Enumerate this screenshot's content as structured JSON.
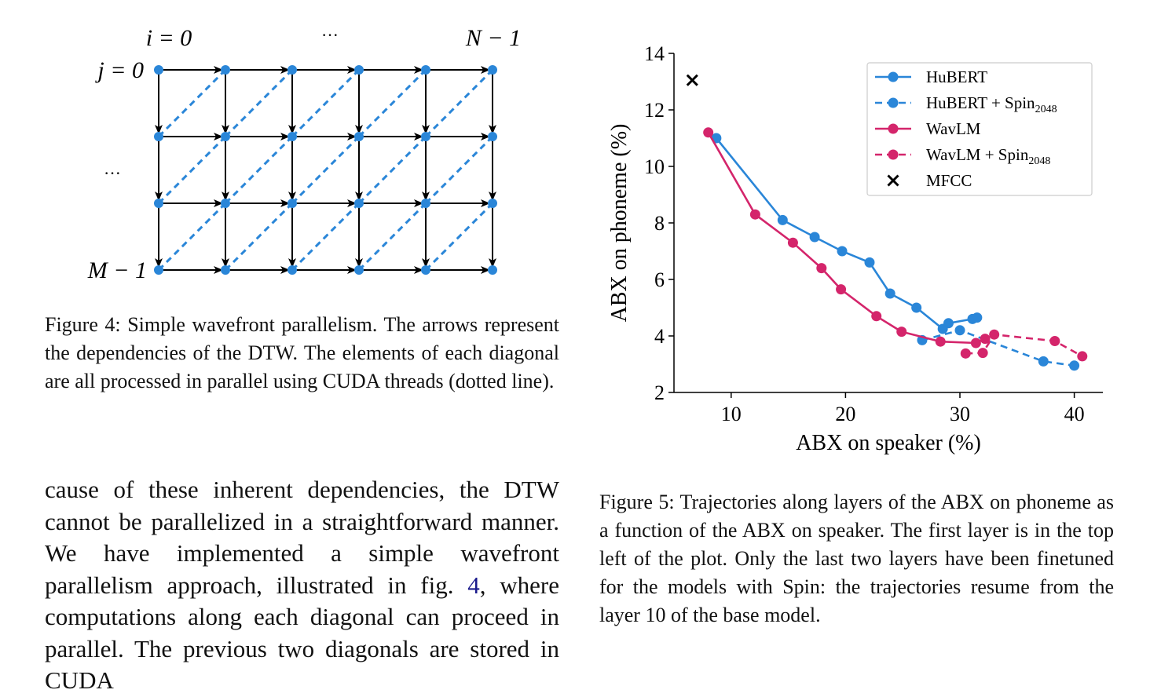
{
  "figure4": {
    "labels": {
      "i_start": "i = 0",
      "i_dots": "···",
      "i_end": "N − 1",
      "j_start": "j = 0",
      "j_dots": "···",
      "j_end": "M − 1"
    },
    "grid": {
      "columns": 6,
      "rows": 4
    },
    "colors": {
      "node": "#2a86d8",
      "arrow": "#000000",
      "diagonal": "#2a86d8"
    },
    "caption": "Figure 4: Simple wavefront parallelism. The arrows represent the dependencies of the DTW. The elements of each diagonal are all processed in parallel using CUDA threads (dotted line)."
  },
  "body_text": {
    "before_ref": "cause of these inherent dependencies, the DTW cannot be parallelized in a straightforward manner. We have implemented a simple wavefront parallelism approach, illustrated in fig. ",
    "ref": "4",
    "after_ref": ", where computations along each diagonal can proceed in parallel. The previous two diagonals are stored in CUDA"
  },
  "chart_data": {
    "type": "line",
    "xlabel": "ABX on speaker (%)",
    "ylabel": "ABX on phoneme (%)",
    "xlim": [
      5,
      42.5
    ],
    "ylim": [
      2,
      14
    ],
    "xticks": [
      10,
      20,
      30,
      40
    ],
    "yticks": [
      2,
      4,
      6,
      8,
      10,
      12,
      14
    ],
    "legend_position": "top-right",
    "series": [
      {
        "name": "HuBERT",
        "color": "#2a86d8",
        "style": "solid",
        "marker": "circle",
        "x": [
          8.7,
          14.5,
          17.3,
          19.7,
          22.1,
          23.9,
          26.2,
          28.5,
          29.0,
          31.1,
          31.5
        ],
        "y": [
          11.0,
          8.1,
          7.5,
          7.0,
          6.6,
          5.5,
          5.0,
          4.25,
          4.45,
          4.6,
          4.65
        ]
      },
      {
        "name": "HuBERT + Spin2048",
        "color": "#2a86d8",
        "style": "dashed",
        "marker": "circle",
        "x": [
          26.7,
          30.0,
          37.3,
          40.0
        ],
        "y": [
          3.85,
          4.2,
          3.1,
          2.95
        ]
      },
      {
        "name": "WavLM",
        "color": "#d4256b",
        "style": "solid",
        "marker": "circle",
        "x": [
          8.0,
          12.1,
          15.4,
          17.9,
          19.6,
          22.7,
          24.9,
          28.3,
          31.4,
          32.2
        ],
        "y": [
          11.2,
          8.3,
          7.3,
          6.4,
          5.65,
          4.7,
          4.15,
          3.8,
          3.75,
          3.9
        ]
      },
      {
        "name": "WavLM + Spin2048",
        "color": "#d4256b",
        "style": "dashed",
        "marker": "circle",
        "x": [
          30.5,
          32.0,
          33.0,
          38.3,
          40.7
        ],
        "y": [
          3.38,
          3.4,
          4.05,
          3.82,
          3.28
        ]
      },
      {
        "name": "MFCC",
        "color": "#000000",
        "style": "none",
        "marker": "x",
        "x": [
          6.6
        ],
        "y": [
          13.05
        ]
      }
    ]
  },
  "figure5": {
    "caption": "Figure 5: Trajectories along layers of the ABX on phoneme as a function of the ABX on speaker. The first layer is in the top left of the plot. Only the last two layers have been finetuned for the models with Spin: the trajectories resume from the layer 10 of the base model."
  }
}
